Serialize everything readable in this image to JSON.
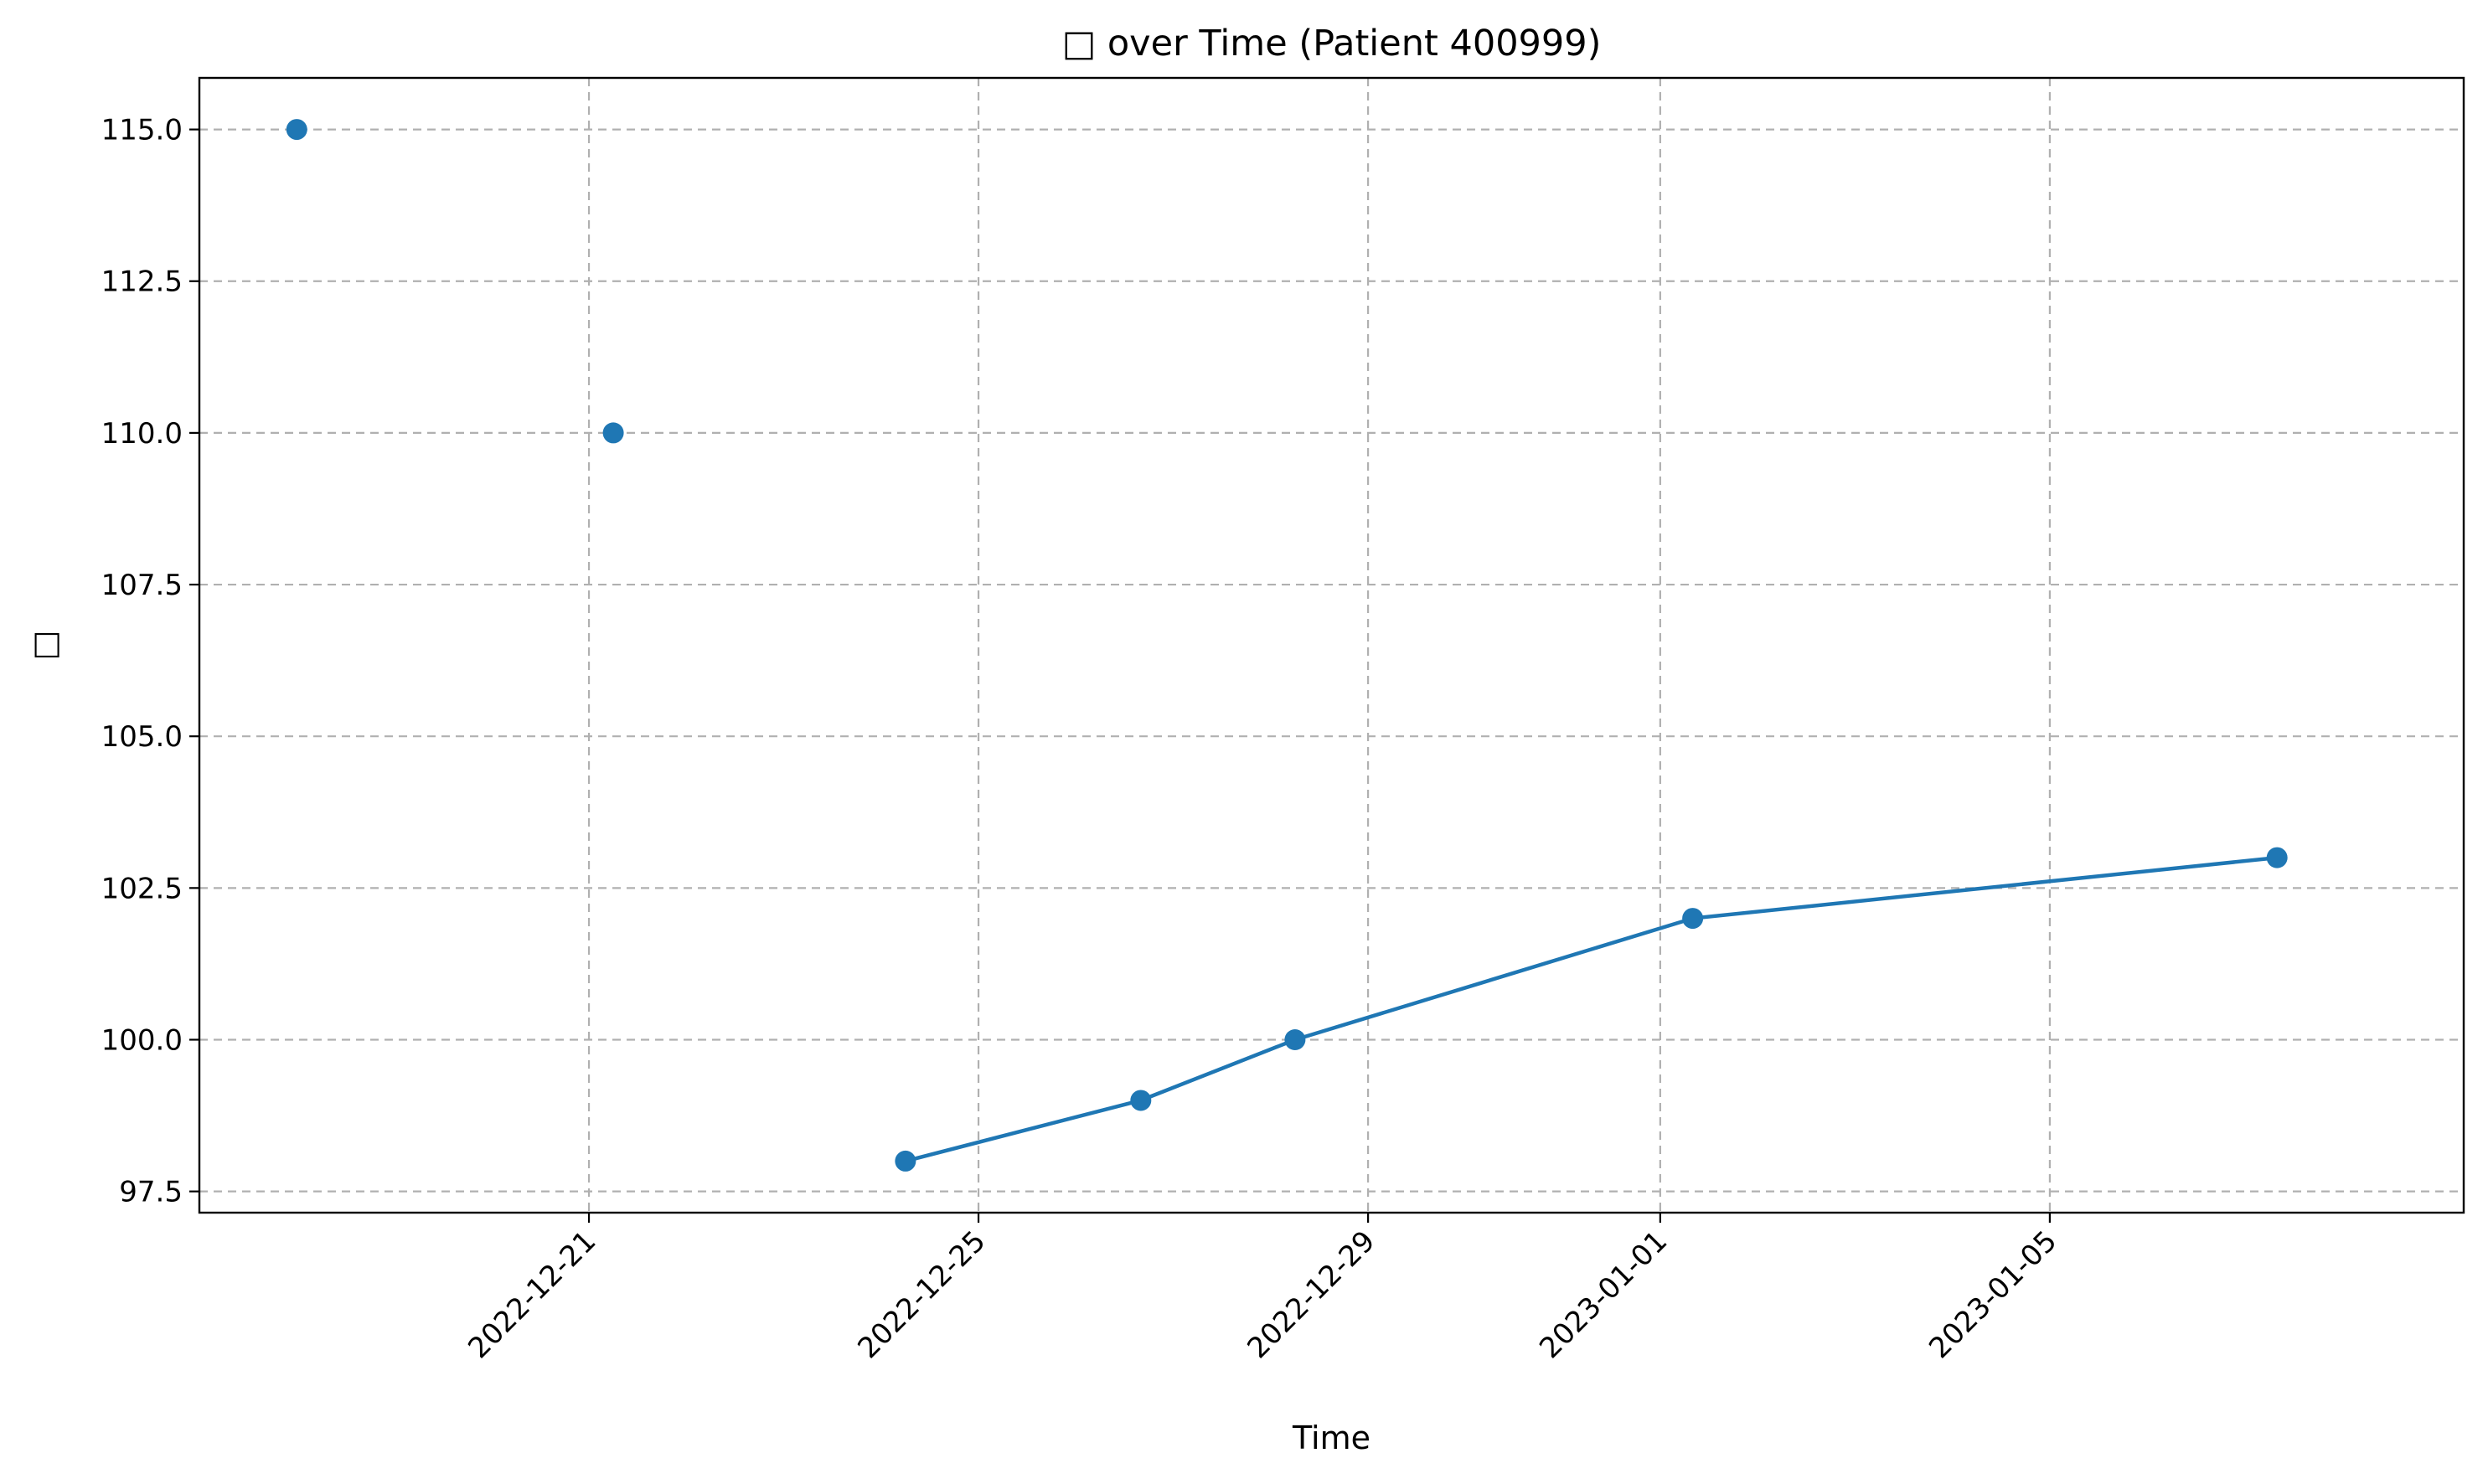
{
  "chart_data": {
    "type": "line",
    "title": "□ over Time (Patient 400999)",
    "xlabel": "Time",
    "ylabel": "□",
    "x_axis_type": "date",
    "xlim": [
      "2022-12-17T00:00",
      "2023-01-09T06:00"
    ],
    "ylim": [
      97.15,
      115.85
    ],
    "x_ticks": [
      "2022-12-21",
      "2022-12-25",
      "2022-12-29",
      "2023-01-01",
      "2023-01-05"
    ],
    "y_ticks": [
      "97.5",
      "100.0",
      "102.5",
      "105.0",
      "107.5",
      "110.0",
      "112.5",
      "115.0"
    ],
    "x_tick_rotation": 45,
    "grid": true,
    "grid_style": "dashed",
    "legend": false,
    "series": [
      {
        "color": "#1f77b4",
        "marker": "circle",
        "points": [
          {
            "x": "2022-12-18T00:00",
            "y": 115.0,
            "connected": false
          },
          {
            "x": "2022-12-21T06:00",
            "y": 110.0,
            "connected": false
          },
          {
            "x": "2022-12-24T06:00",
            "y": 98.0,
            "connected": true
          },
          {
            "x": "2022-12-26T16:00",
            "y": 99.0,
            "connected": true
          },
          {
            "x": "2022-12-28T06:00",
            "y": 100.0,
            "connected": true
          },
          {
            "x": "2023-01-01T08:00",
            "y": 102.0,
            "connected": true
          },
          {
            "x": "2023-01-07T08:00",
            "y": 103.0,
            "connected": true
          }
        ]
      }
    ]
  }
}
